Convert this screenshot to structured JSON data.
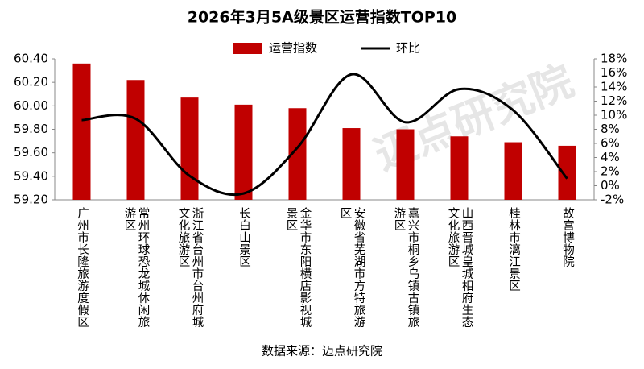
{
  "chart_data": {
    "type": "bar-line",
    "title": "2026年3月5A级景区运营指数TOP10",
    "source": "数据来源：迈点研究院",
    "watermark": "迈点研究院",
    "categories": [
      "广州市长隆旅游度假区",
      "常州环球恐龙城休闲旅游区",
      "浙江省台州市台州府城文化旅游区",
      "长白山景区",
      "金华市东阳横店影视城景区",
      "安徽省芜湖市方特旅游区",
      "嘉兴市桐乡乌镇古镇旅游区",
      "山西晋城皇城相府生态文化旅游区",
      "桂林市漓江景区",
      "故宫博物院"
    ],
    "series": [
      {
        "name": "运营指数",
        "type": "bar",
        "color": "#c00000",
        "values": [
          60.36,
          60.22,
          60.07,
          60.01,
          59.98,
          59.81,
          59.8,
          59.74,
          59.69,
          59.66
        ]
      },
      {
        "name": "环比",
        "type": "line",
        "axis": "y2",
        "color": "#000000",
        "values": [
          9.3,
          9.5,
          1.4,
          -1.1,
          5.4,
          15.8,
          9.0,
          13.7,
          10.7,
          1.0
        ]
      }
    ],
    "ylim": [
      59.2,
      60.4
    ],
    "yticks": [
      {
        "value": 59.2,
        "label": "59.20"
      },
      {
        "value": 59.4,
        "label": "59.40"
      },
      {
        "value": 59.6,
        "label": "59.60"
      },
      {
        "value": 59.8,
        "label": "59.80"
      },
      {
        "value": 60.0,
        "label": "60.00"
      },
      {
        "value": 60.2,
        "label": "60.20"
      },
      {
        "value": 60.4,
        "label": "60.40"
      }
    ],
    "y2lim": [
      -2,
      18
    ],
    "y2ticks": [
      {
        "value": -2,
        "label": "-2%"
      },
      {
        "value": 0,
        "label": "0%"
      },
      {
        "value": 2,
        "label": "2%"
      },
      {
        "value": 4,
        "label": "4%"
      },
      {
        "value": 6,
        "label": "6%"
      },
      {
        "value": 8,
        "label": "8%"
      },
      {
        "value": 10,
        "label": "10%"
      },
      {
        "value": 12,
        "label": "12%"
      },
      {
        "value": 14,
        "label": "14%"
      },
      {
        "value": 16,
        "label": "16%"
      },
      {
        "value": 18,
        "label": "18%"
      }
    ],
    "grid": false
  }
}
